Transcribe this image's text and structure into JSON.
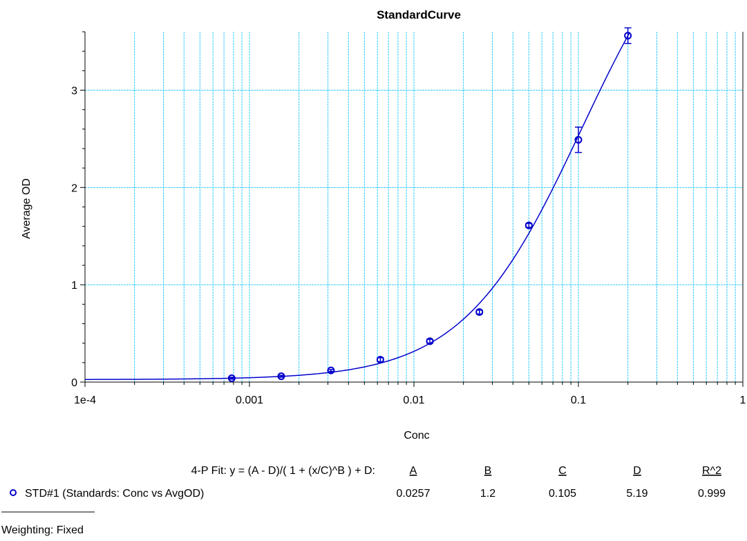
{
  "chart_data": {
    "type": "scatter",
    "title": "StandardCurve",
    "xlabel": "Conc",
    "ylabel": "Average OD",
    "xscale": "log",
    "xlim": [
      0.0001,
      1
    ],
    "ylim": [
      0,
      3.6
    ],
    "grid": true,
    "x_ticks": [
      {
        "value": 0.0001,
        "label": "1e-4"
      },
      {
        "value": 0.001,
        "label": "0.001"
      },
      {
        "value": 0.01,
        "label": "0.01"
      },
      {
        "value": 0.1,
        "label": "0.1"
      },
      {
        "value": 1,
        "label": "1"
      }
    ],
    "y_ticks": [
      {
        "value": 0,
        "label": "0"
      },
      {
        "value": 1,
        "label": "1"
      },
      {
        "value": 2,
        "label": "2"
      },
      {
        "value": 3,
        "label": "3"
      }
    ],
    "series": [
      {
        "name": "STD#1 (Standards: Conc vs AvgOD)",
        "color": "#0000cc",
        "marker": "circle",
        "points": [
          {
            "x": 0.00078,
            "y": 0.04,
            "err": 0.01
          },
          {
            "x": 0.00156,
            "y": 0.06,
            "err": 0.01
          },
          {
            "x": 0.00313,
            "y": 0.12,
            "err": 0.01
          },
          {
            "x": 0.00625,
            "y": 0.23,
            "err": 0.02
          },
          {
            "x": 0.0125,
            "y": 0.42,
            "err": 0.02
          },
          {
            "x": 0.025,
            "y": 0.72,
            "err": 0.02
          },
          {
            "x": 0.05,
            "y": 1.61,
            "err": 0.02
          },
          {
            "x": 0.1,
            "y": 2.49,
            "err": 0.13
          },
          {
            "x": 0.2,
            "y": 3.56,
            "err": 0.08
          }
        ]
      }
    ],
    "fit": {
      "label": "4-P Fit: y = (A - D)/( 1 + (x/C)^B ) + D:",
      "params": [
        {
          "name": "A",
          "value": "0.0257"
        },
        {
          "name": "B",
          "value": "1.2"
        },
        {
          "name": "C",
          "value": "0.105"
        },
        {
          "name": "D",
          "value": "5.19"
        },
        {
          "name": "R^2",
          "value": "0.999"
        }
      ]
    },
    "weighting": "Weighting: Fixed",
    "colors": {
      "grid": "#33ccff",
      "curve": "#0000cc",
      "axis": "#000000"
    }
  }
}
